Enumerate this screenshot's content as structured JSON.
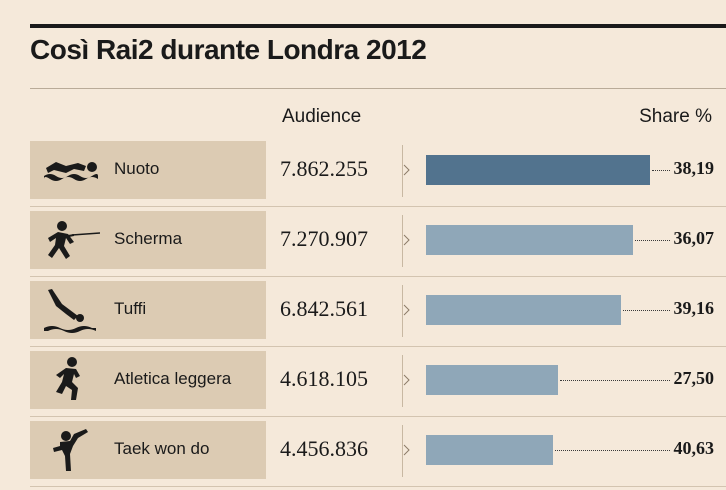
{
  "chart_data": {
    "type": "bar",
    "title": "Così Rai2 durante Londra 2012",
    "audience_header": "Audience",
    "share_header": "Share %",
    "rows": [
      {
        "sport": "Nuoto",
        "icon": "swimmer-icon",
        "audience": "7.862.255",
        "audience_value": 7862255,
        "share": "38,19",
        "highlight": true
      },
      {
        "sport": "Scherma",
        "icon": "fencer-icon",
        "audience": "7.270.907",
        "audience_value": 7270907,
        "share": "36,07",
        "highlight": false
      },
      {
        "sport": "Tuffi",
        "icon": "diver-icon",
        "audience": "6.842.561",
        "audience_value": 6842561,
        "share": "39,16",
        "highlight": false
      },
      {
        "sport": "Atletica leggera",
        "icon": "runner-icon",
        "audience": "4.618.105",
        "audience_value": 4618105,
        "share": "27,50",
        "highlight": false
      },
      {
        "sport": "Taek won do",
        "icon": "taekwondo-kick-icon",
        "audience": "4.456.836",
        "audience_value": 4456836,
        "share": "40,63",
        "highlight": false
      }
    ],
    "xlim": [
      0,
      7862255
    ],
    "colors": {
      "highlight_bar": "#52738e",
      "bar": "#8fa7b8",
      "label_bg": "#dccbb3",
      "background": "#f5e9da"
    }
  }
}
